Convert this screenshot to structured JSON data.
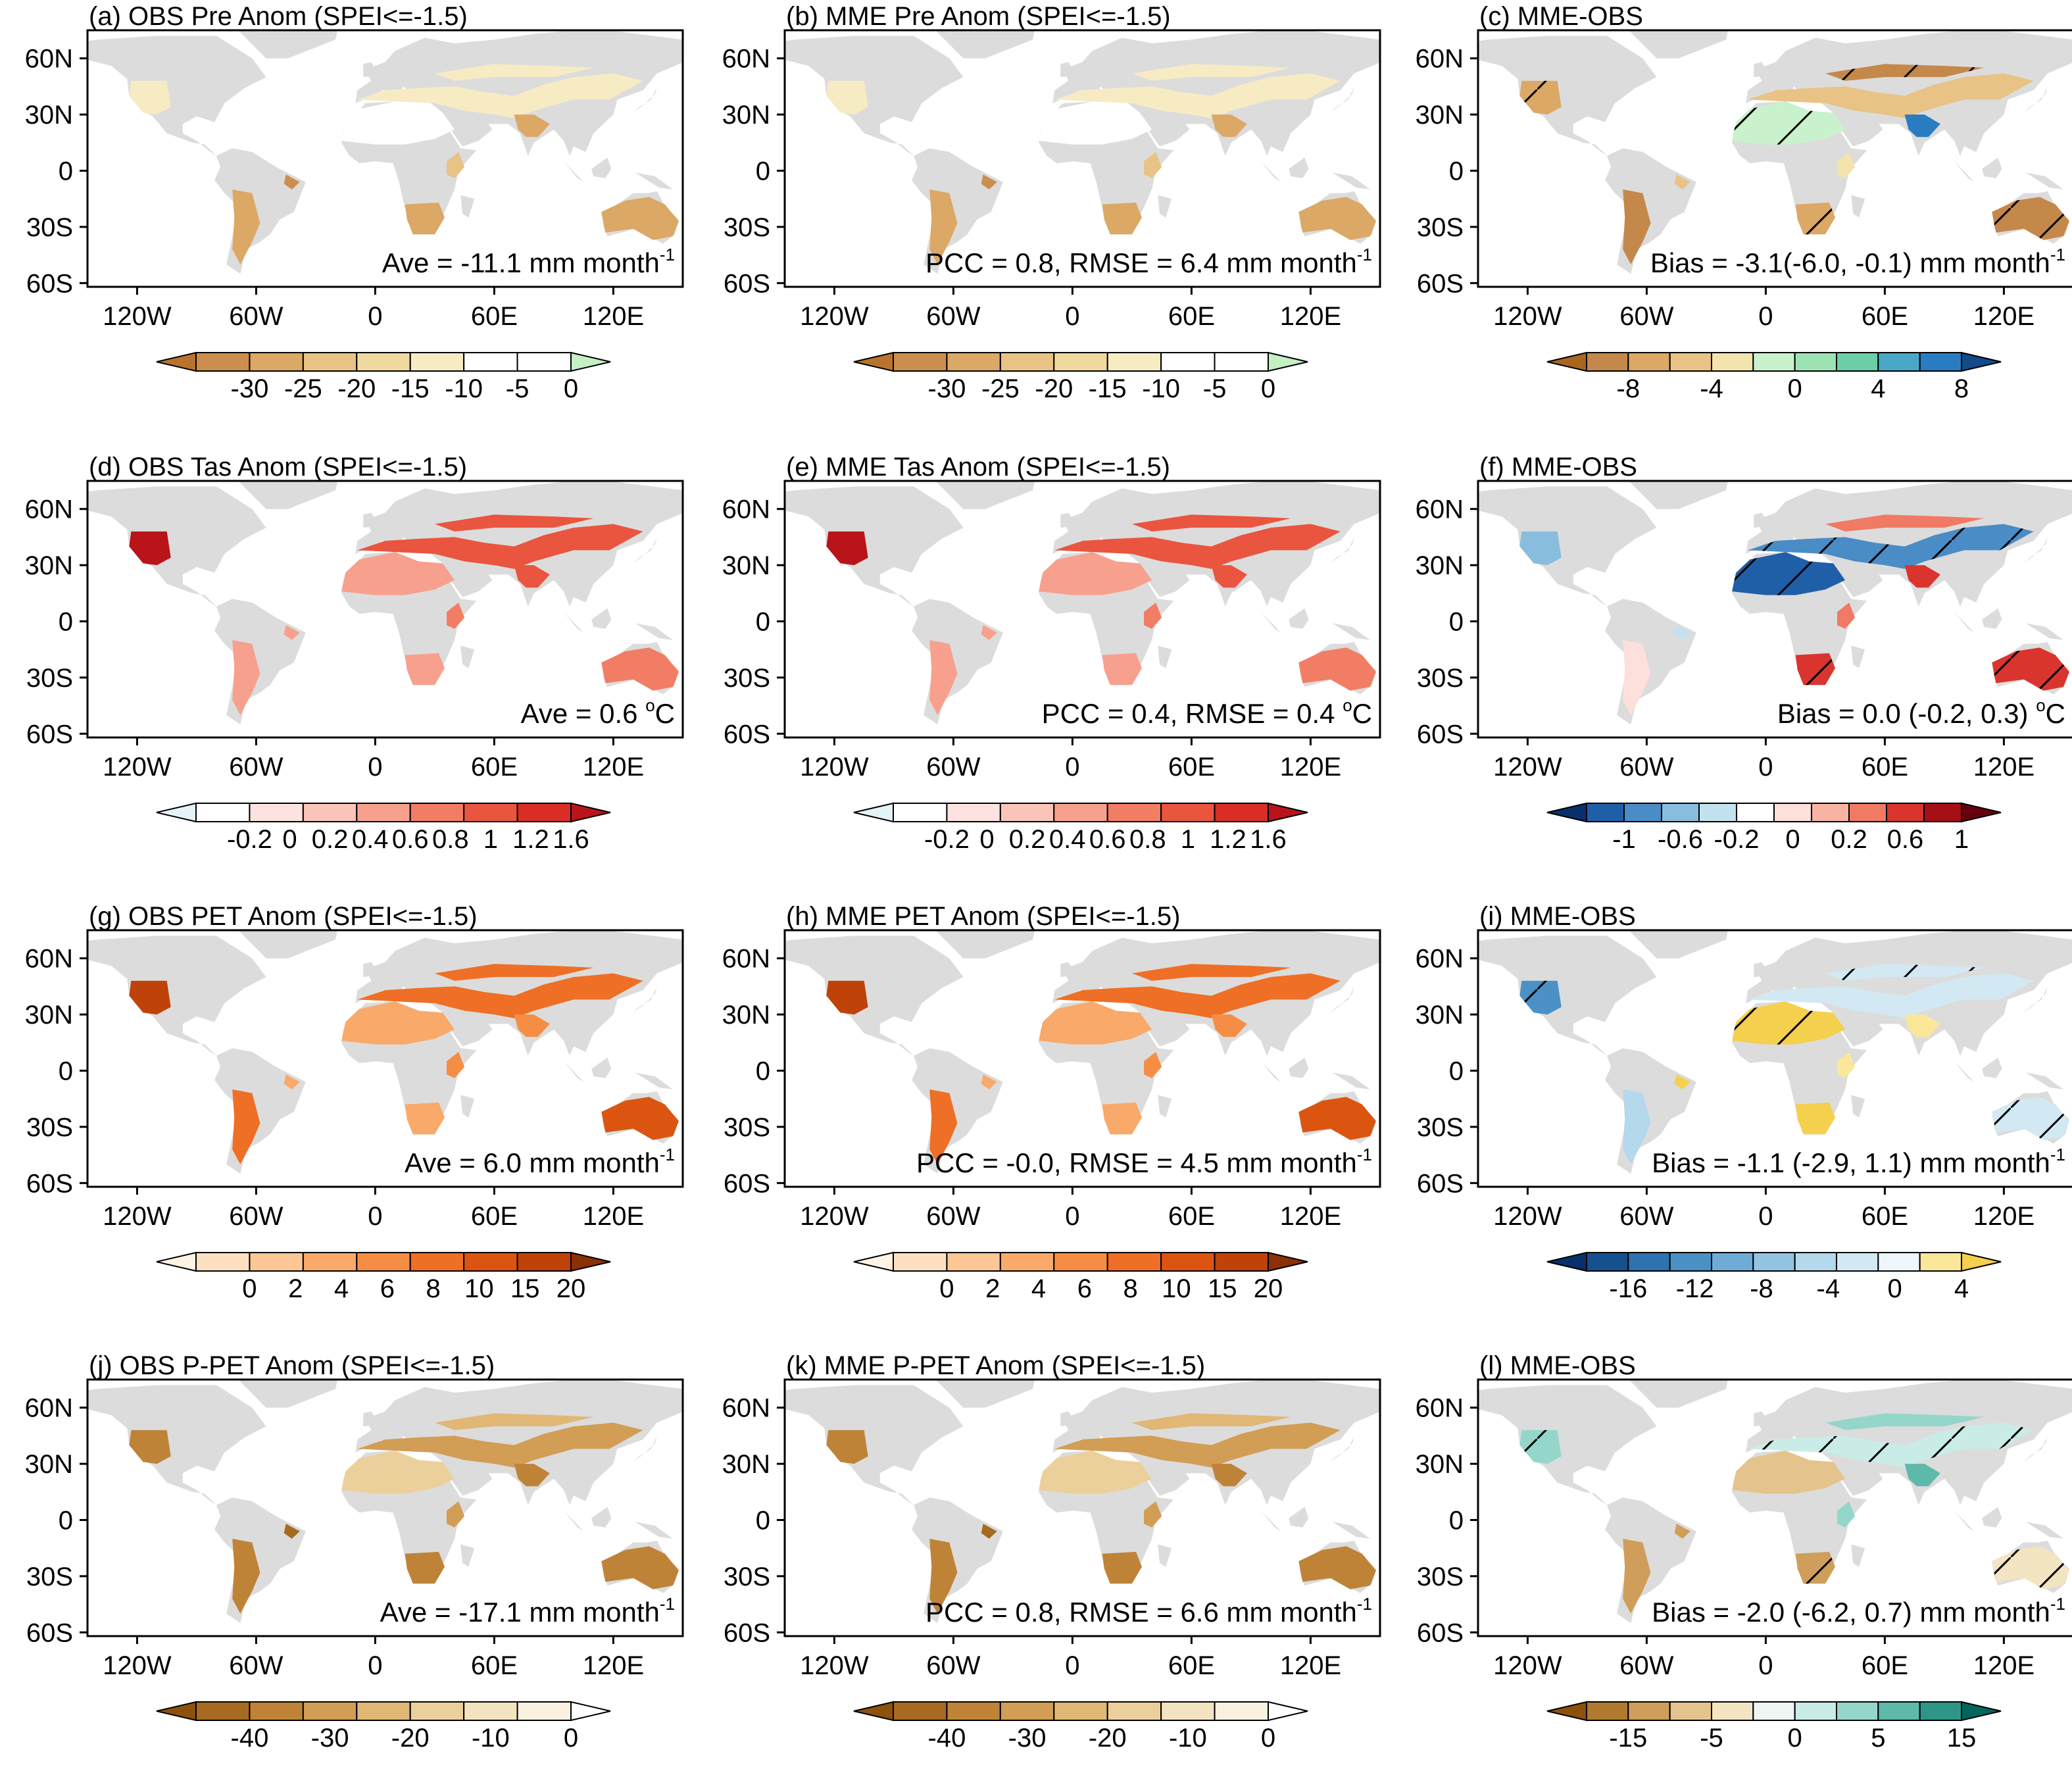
{
  "figure": {
    "x_ticks": [
      "120W",
      "60W",
      "0",
      "60E",
      "120E"
    ],
    "y_ticks": [
      "60N",
      "30N",
      "0",
      "30S",
      "60S"
    ],
    "land_color": "#dcdcdc",
    "hatch_color": "#000000"
  },
  "panels": [
    {
      "id": "a",
      "title": "(a) OBS Pre Anom (SPEI<=-1.5)",
      "stat": "Ave = -11.1 mm month",
      "stat_sup": "-1",
      "field": "pre",
      "cb": "pre",
      "hatch": false
    },
    {
      "id": "b",
      "title": "(b) MME Pre Anom (SPEI<=-1.5)",
      "stat": "PCC = 0.8, RMSE = 6.4 mm month",
      "stat_sup": "-1",
      "field": "pre",
      "cb": "pre",
      "hatch": false
    },
    {
      "id": "c",
      "title": "(c) MME-OBS",
      "stat": "Bias = -3.1(-6.0, -0.1) mm month",
      "stat_sup": "-1",
      "field": "pre_diff",
      "cb": "pre_diff",
      "hatch": true
    },
    {
      "id": "d",
      "title": "(d) OBS Tas Anom (SPEI<=-1.5)",
      "stat": "Ave = 0.6 ",
      "stat_sup": "o",
      "stat_tail": "C",
      "field": "tas",
      "cb": "tas",
      "hatch": false
    },
    {
      "id": "e",
      "title": "(e) MME Tas Anom (SPEI<=-1.5)",
      "stat": "PCC = 0.4, RMSE = 0.4 ",
      "stat_sup": "o",
      "stat_tail": "C",
      "field": "tas",
      "cb": "tas",
      "hatch": false
    },
    {
      "id": "f",
      "title": "(f) MME-OBS",
      "stat": "Bias = 0.0 (-0.2, 0.3) ",
      "stat_sup": "o",
      "stat_tail": "C",
      "field": "tas_diff",
      "cb": "tas_diff",
      "hatch": true
    },
    {
      "id": "g",
      "title": "(g) OBS PET Anom (SPEI<=-1.5)",
      "stat": "Ave = 6.0 mm month",
      "stat_sup": "-1",
      "field": "pet",
      "cb": "pet",
      "hatch": false
    },
    {
      "id": "h",
      "title": "(h) MME PET Anom (SPEI<=-1.5)",
      "stat": "PCC = -0.0, RMSE = 4.5 mm month",
      "stat_sup": "-1",
      "field": "pet",
      "cb": "pet",
      "hatch": false
    },
    {
      "id": "i",
      "title": "(i) MME-OBS",
      "stat": "Bias = -1.1 (-2.9, 1.1) mm month",
      "stat_sup": "-1",
      "field": "pet_diff",
      "cb": "pet_diff",
      "hatch": true
    },
    {
      "id": "j",
      "title": "(j) OBS P-PET Anom (SPEI<=-1.5)",
      "stat": "Ave = -17.1 mm month",
      "stat_sup": "-1",
      "field": "ppet",
      "cb": "ppet",
      "hatch": false
    },
    {
      "id": "k",
      "title": "(k) MME P-PET Anom (SPEI<=-1.5)",
      "stat": "PCC = 0.8, RMSE = 6.6 mm month",
      "stat_sup": "-1",
      "field": "ppet",
      "cb": "ppet",
      "hatch": false
    },
    {
      "id": "l",
      "title": "(l) MME-OBS",
      "stat": "Bias = -2.0 (-6.2, 0.7) mm month",
      "stat_sup": "-1",
      "field": "ppet_diff",
      "cb": "ppet_diff",
      "hatch": true
    }
  ],
  "colorbars": {
    "pre": {
      "colors": [
        "#b8742e",
        "#cc8e4f",
        "#dba866",
        "#e8c385",
        "#f0d9a0",
        "#f7ebc4",
        "#ffffff",
        "#ffffff",
        "#c4f0c4"
      ],
      "labels": [
        "-30",
        "-25",
        "-20",
        "-15",
        "-10",
        "-5",
        "0"
      ]
    },
    "pre_diff": {
      "colors": [
        "#a8661f",
        "#c4884a",
        "#dba866",
        "#e8c385",
        "#f3e3ad",
        "#c9f2cc",
        "#9de3b2",
        "#6ccda7",
        "#4aa8c7",
        "#2a7cc0",
        "#124a8a"
      ],
      "labels": [
        "-8",
        "-4",
        "0",
        "4",
        "8"
      ]
    },
    "tas": {
      "colors": [
        "#e3f3f8",
        "#ffffff",
        "#fde3df",
        "#fbc4b8",
        "#f7a08e",
        "#f27d65",
        "#e9553f",
        "#d82e26",
        "#b8141a"
      ],
      "labels": [
        "-0.2",
        "0",
        "0.2",
        "0.4",
        "0.6",
        "0.8",
        "1",
        "1.2",
        "1.6"
      ]
    },
    "tas_diff": {
      "colors": [
        "#08306b",
        "#1f5fa8",
        "#4a8cc6",
        "#88bddd",
        "#c3e2ef",
        "#ffffff",
        "#fde0db",
        "#f8b4a3",
        "#f07a63",
        "#d9352e",
        "#a50f15",
        "#67000d"
      ],
      "labels": [
        "-1",
        "-0.6",
        "-0.2",
        "0",
        "0.2",
        "0.6",
        "1"
      ]
    },
    "pet": {
      "colors": [
        "#fff3e6",
        "#fde0c2",
        "#fcc795",
        "#f9a96a",
        "#f68d45",
        "#ee6f25",
        "#db5510",
        "#bf4208",
        "#8c3006"
      ],
      "labels": [
        "0",
        "2",
        "4",
        "6",
        "8",
        "10",
        "15",
        "20"
      ]
    },
    "pet_diff": {
      "colors": [
        "#08306b",
        "#15508f",
        "#2e73b0",
        "#4b91c6",
        "#6eabd6",
        "#93c4e2",
        "#b4d8ec",
        "#d2e9f3",
        "#eef7fb",
        "#fbe79a",
        "#f5cf4e"
      ],
      "labels": [
        "-16",
        "-12",
        "-8",
        "-4",
        "0",
        "4"
      ]
    },
    "ppet": {
      "colors": [
        "#8c510a",
        "#a66a20",
        "#bf8338",
        "#d29d55",
        "#e0b775",
        "#ecd09b",
        "#f4e3c0",
        "#faf1e0",
        "#ffffff"
      ],
      "labels": [
        "-40",
        "-30",
        "-20",
        "-10",
        "0"
      ]
    },
    "ppet_diff": {
      "colors": [
        "#8c510a",
        "#b07a2f",
        "#cf9e5a",
        "#e4c48c",
        "#f3e4c2",
        "#eef5f4",
        "#c9ece6",
        "#95d6cb",
        "#5fb9ab",
        "#2e9688",
        "#01665e"
      ],
      "labels": [
        "-15",
        "-5",
        "0",
        "5",
        "15"
      ]
    }
  }
}
